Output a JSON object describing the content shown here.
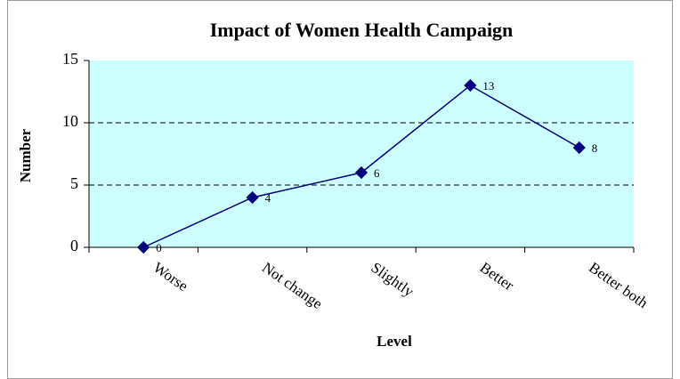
{
  "chart_data": {
    "type": "line",
    "title": "Impact of Women Health Campaign",
    "x_label": "Level",
    "y_label": "Number",
    "categories": [
      "Worse",
      "Not change",
      "Slightly",
      "Better",
      "Better both"
    ],
    "values": [
      0,
      4,
      6,
      13,
      8
    ],
    "color": "#000080",
    "ylim": [
      0,
      15
    ],
    "yticks": [
      0,
      5,
      10,
      15
    ],
    "grid": true,
    "plot_background": "#ccffff"
  }
}
